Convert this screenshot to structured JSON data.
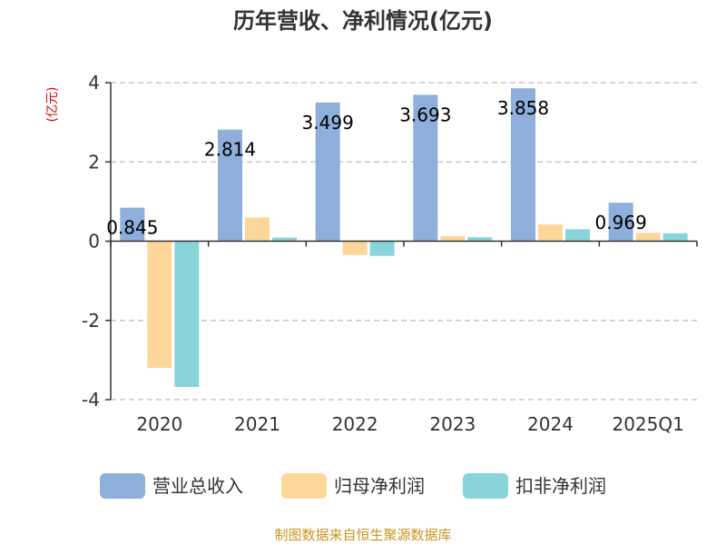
{
  "chart_data": {
    "type": "bar",
    "title": "历年营收、净利情况(亿元)",
    "unit_label": "(亿元)",
    "categories": [
      "2020",
      "2021",
      "2022",
      "2023",
      "2024",
      "2025Q1"
    ],
    "series": [
      {
        "name": "营业总收入",
        "color": "#8eaedc",
        "values": [
          0.845,
          2.814,
          3.499,
          3.693,
          3.858,
          0.969
        ]
      },
      {
        "name": "归母净利润",
        "color": "#fdd79a",
        "values": [
          -3.2,
          0.6,
          -0.35,
          0.13,
          0.42,
          0.21
        ]
      },
      {
        "name": "扣非净利润",
        "color": "#88d5d9",
        "values": [
          -3.68,
          0.09,
          -0.37,
          0.1,
          0.3,
          0.2
        ]
      }
    ],
    "data_labels": [
      "0.845",
      "2.814",
      "3.499",
      "3.693",
      "3.858",
      "0.969"
    ],
    "yticks": [
      4,
      2,
      0,
      -2,
      -4
    ],
    "ylim": [
      -4,
      4
    ],
    "grid": true,
    "legend_position": "bottom"
  },
  "source_text": "制图数据来自恒生聚源数据库"
}
